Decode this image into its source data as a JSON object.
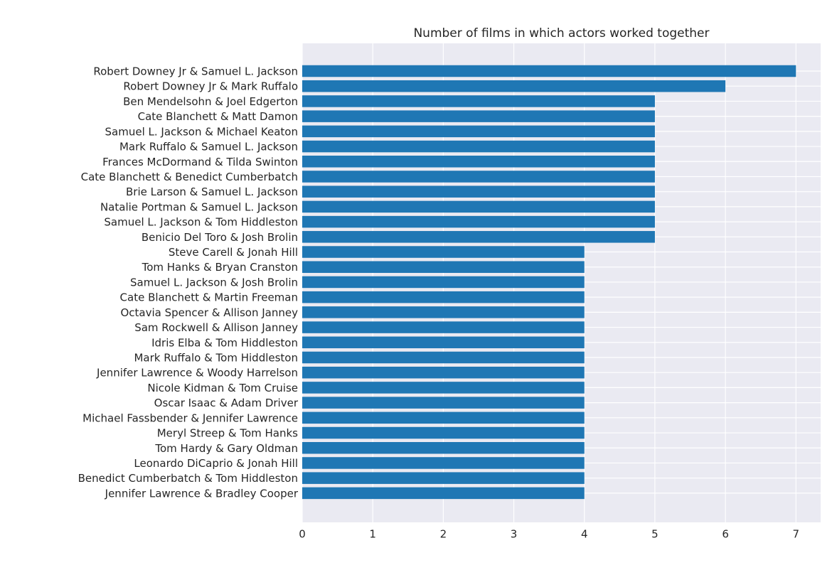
{
  "chart_data": {
    "type": "bar",
    "orientation": "horizontal",
    "title": "Number of films in which actors worked together",
    "xlabel": "",
    "ylabel": "",
    "xlim": [
      0,
      7.35
    ],
    "xticks": [
      0,
      1,
      2,
      3,
      4,
      5,
      6,
      7
    ],
    "grid": true,
    "colors": {
      "bar": "#1f77b4",
      "plot_bg": "#eaeaf2",
      "grid": "#ffffff",
      "text": "#262626"
    },
    "categories": [
      "Robert Downey Jr & Samuel L. Jackson",
      "Robert Downey Jr & Mark Ruffalo",
      "Ben Mendelsohn & Joel Edgerton",
      "Cate Blanchett & Matt Damon",
      "Samuel L. Jackson & Michael Keaton",
      "Mark Ruffalo & Samuel L. Jackson",
      "Frances McDormand & Tilda Swinton",
      "Cate Blanchett & Benedict Cumberbatch",
      "Brie Larson & Samuel L. Jackson",
      "Natalie Portman & Samuel L. Jackson",
      "Samuel L. Jackson & Tom Hiddleston",
      "Benicio Del Toro & Josh Brolin",
      "Steve Carell & Jonah Hill",
      "Tom Hanks & Bryan Cranston",
      "Samuel L. Jackson & Josh Brolin",
      "Cate Blanchett & Martin Freeman",
      "Octavia Spencer & Allison Janney",
      "Sam Rockwell & Allison Janney",
      "Idris Elba & Tom Hiddleston",
      "Mark Ruffalo & Tom Hiddleston",
      "Jennifer Lawrence & Woody Harrelson",
      "Nicole Kidman & Tom Cruise",
      "Oscar Isaac & Adam Driver",
      "Michael Fassbender & Jennifer Lawrence",
      "Meryl Streep & Tom Hanks",
      "Tom Hardy & Gary Oldman",
      "Leonardo DiCaprio & Jonah Hill",
      "Benedict Cumberbatch & Tom Hiddleston",
      "Jennifer Lawrence & Bradley Cooper"
    ],
    "values": [
      7,
      6,
      5,
      5,
      5,
      5,
      5,
      5,
      5,
      5,
      5,
      5,
      4,
      4,
      4,
      4,
      4,
      4,
      4,
      4,
      4,
      4,
      4,
      4,
      4,
      4,
      4,
      4,
      4
    ]
  }
}
